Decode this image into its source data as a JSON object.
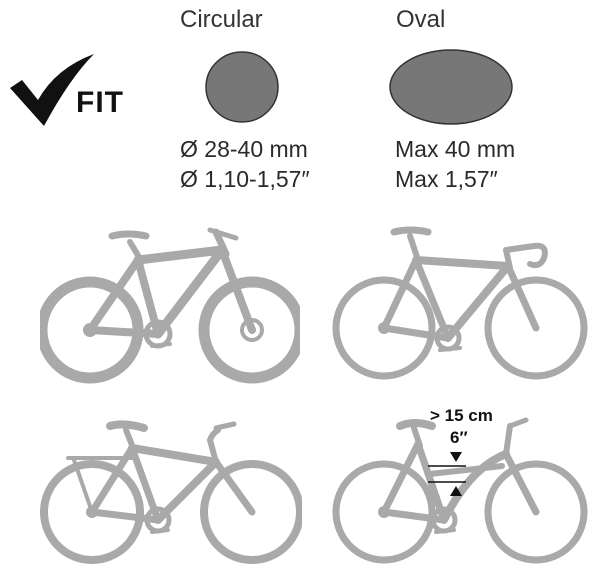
{
  "fit": {
    "label": "FIT",
    "icon": "checkmark-icon"
  },
  "tubes": [
    {
      "shape": "Circular",
      "line1": "Ø 28-40 mm",
      "line2": "Ø 1,10-1,57″"
    },
    {
      "shape": "Oval",
      "line1": "Max 40 mm",
      "line2": "Max 1,57″"
    }
  ],
  "clearance": {
    "metric": "> 15 cm",
    "imperial": "6″"
  },
  "colors": {
    "tube_fill": "#777777",
    "bike": "#a9a9a9",
    "ink": "#111111"
  }
}
